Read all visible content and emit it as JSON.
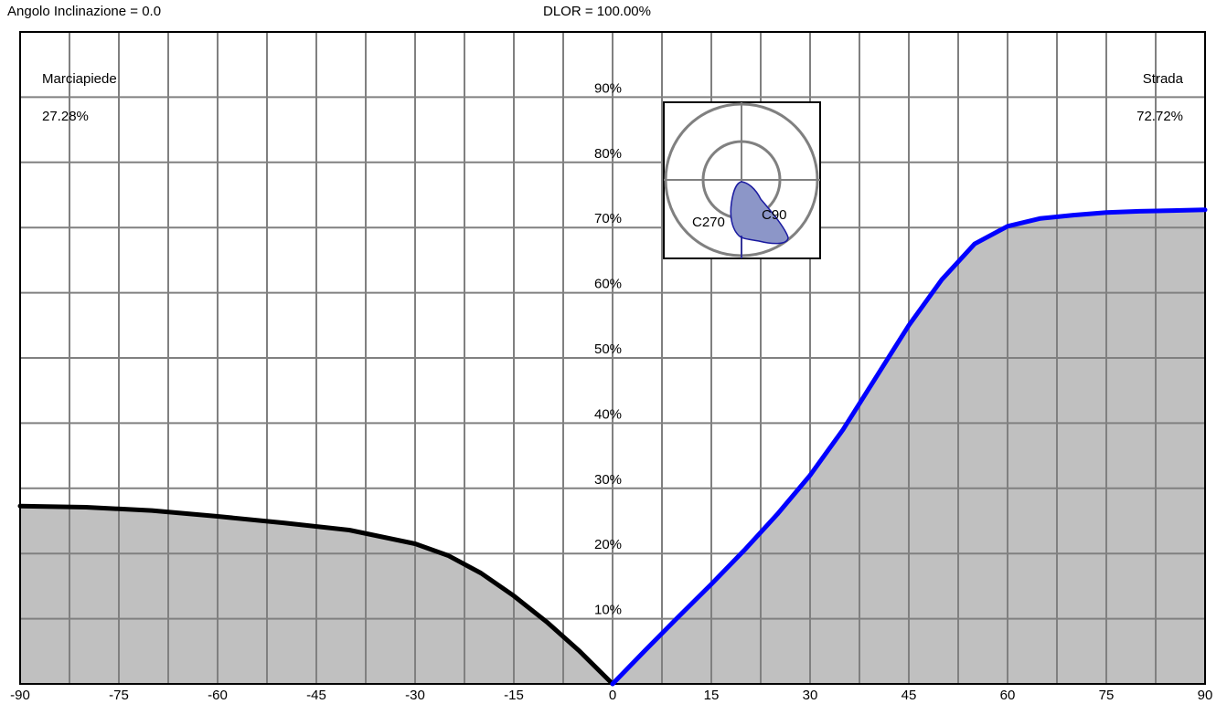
{
  "header": {
    "angle_label": "Angolo Inclinazione = 0.0",
    "dlor_label": "DLOR = 100.00%"
  },
  "chart_data": {
    "type": "area",
    "x_range": [
      -90,
      90
    ],
    "y_range": [
      0,
      100
    ],
    "x_tick_values": [
      -90,
      -75,
      -60,
      -45,
      -30,
      -15,
      0,
      15,
      30,
      45,
      60,
      75,
      90
    ],
    "x_tick_labels": [
      "-90",
      "-75",
      "-60",
      "-45",
      "-30",
      "-15",
      "0",
      "15",
      "30",
      "45",
      "60",
      "75",
      "90"
    ],
    "y_tick_values": [
      10,
      20,
      30,
      40,
      50,
      60,
      70,
      80,
      90
    ],
    "y_tick_labels": [
      "10%",
      "20%",
      "30%",
      "40%",
      "50%",
      "60%",
      "70%",
      "80%",
      "90%"
    ],
    "grid": true,
    "left_region": {
      "label": "Marciapiede",
      "value": "27.28%"
    },
    "right_region": {
      "label": "Strada",
      "value": "72.72%"
    },
    "series": [
      {
        "color": "#000000",
        "x": [
          -90,
          -80,
          -70,
          -60,
          -50,
          -40,
          -30,
          -25,
          -20,
          -15,
          -10,
          -5,
          0
        ],
        "y": [
          27.28,
          27.1,
          26.6,
          25.7,
          24.7,
          23.6,
          21.5,
          19.7,
          17.0,
          13.5,
          9.5,
          5.0,
          0
        ]
      },
      {
        "color": "#0000ff",
        "x": [
          0,
          5,
          10,
          15,
          20,
          25,
          30,
          35,
          40,
          45,
          50,
          55,
          60,
          65,
          70,
          75,
          80,
          85,
          90
        ],
        "y": [
          0,
          5.2,
          10.3,
          15.3,
          20.5,
          26.0,
          32.0,
          39.0,
          47.0,
          55.0,
          62.0,
          67.5,
          70.2,
          71.4,
          71.9,
          72.3,
          72.5,
          72.6,
          72.72
        ]
      }
    ],
    "area_fill": "#c0c0c0",
    "inset_polar": {
      "labels": [
        "C270",
        "C90"
      ],
      "shape_color": "#8c96c8"
    }
  }
}
